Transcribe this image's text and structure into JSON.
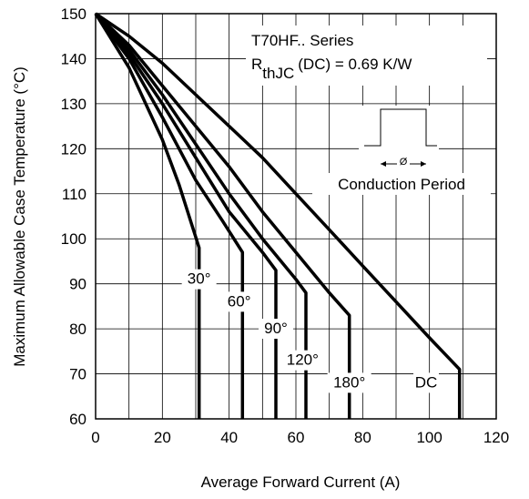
{
  "chart_data": {
    "type": "line",
    "title": "",
    "xlabel": "Average Forward Current (A)",
    "ylabel": "Maximum Allowable Case Temperature (°C)",
    "xlim": [
      0,
      120
    ],
    "ylim": [
      60,
      150
    ],
    "grid": true,
    "x_ticks": [
      "0",
      "20",
      "40",
      "60",
      "80",
      "100",
      "120"
    ],
    "y_ticks": [
      "60",
      "70",
      "80",
      "90",
      "100",
      "110",
      "120",
      "130",
      "140",
      "150"
    ],
    "annotation": {
      "line1": "T70HF.. Series",
      "line2_prefix": "R",
      "line2_subscript": "thJC",
      "line2_suffix": "(DC) = 0.69 K/W",
      "inset_label": "Conduction Period",
      "inset_symbol": "Ø"
    },
    "series": [
      {
        "name": "30°",
        "color": "#000000",
        "points": [
          [
            0,
            150
          ],
          [
            10,
            138
          ],
          [
            20,
            122
          ],
          [
            25,
            112
          ],
          [
            31,
            98
          ],
          [
            31,
            60
          ]
        ]
      },
      {
        "name": "60°",
        "color": "#000000",
        "points": [
          [
            0,
            150
          ],
          [
            10,
            140
          ],
          [
            20,
            127
          ],
          [
            30,
            113
          ],
          [
            38,
            104
          ],
          [
            44,
            97
          ],
          [
            44,
            60
          ]
        ]
      },
      {
        "name": "90°",
        "color": "#000000",
        "points": [
          [
            0,
            150
          ],
          [
            10,
            141
          ],
          [
            20,
            130
          ],
          [
            30,
            118
          ],
          [
            40,
            106
          ],
          [
            50,
            97
          ],
          [
            54,
            93
          ],
          [
            54,
            60
          ]
        ]
      },
      {
        "name": "120°",
        "color": "#000000",
        "points": [
          [
            0,
            150
          ],
          [
            10,
            142
          ],
          [
            20,
            132
          ],
          [
            30,
            121
          ],
          [
            40,
            110
          ],
          [
            50,
            100
          ],
          [
            60,
            91
          ],
          [
            63,
            88
          ],
          [
            63,
            60
          ]
        ]
      },
      {
        "name": "180°",
        "color": "#000000",
        "points": [
          [
            0,
            150
          ],
          [
            10,
            143
          ],
          [
            20,
            134
          ],
          [
            30,
            125
          ],
          [
            40,
            116
          ],
          [
            50,
            106
          ],
          [
            60,
            97
          ],
          [
            70,
            88
          ],
          [
            76,
            83
          ],
          [
            76,
            60
          ]
        ]
      },
      {
        "name": "DC",
        "color": "#000000",
        "points": [
          [
            0,
            150
          ],
          [
            10,
            145
          ],
          [
            20,
            139
          ],
          [
            30,
            132
          ],
          [
            40,
            125
          ],
          [
            50,
            118
          ],
          [
            60,
            110
          ],
          [
            70,
            102
          ],
          [
            80,
            94
          ],
          [
            90,
            86
          ],
          [
            100,
            78
          ],
          [
            109,
            71
          ],
          [
            109,
            60
          ]
        ]
      }
    ]
  }
}
